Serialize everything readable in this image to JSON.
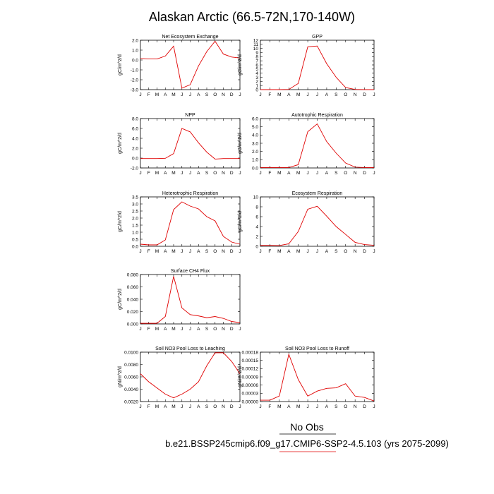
{
  "title": "Alaskan Arctic (66.5-72N,170-140W)",
  "legend": {
    "obs_label": "No Obs",
    "model_label": "b.e21.BSSP245cmip6.f09_g17.CMIP6-SSP2-4.5.103 (yrs 2075-2099)",
    "model_color": "#e00000",
    "obs_color": "#000000"
  },
  "chart_data": [
    {
      "type": "line",
      "title": "Net Ecosystem Exchange",
      "ylabel": "gC/m^2/d",
      "categories": [
        "J",
        "F",
        "M",
        "A",
        "M",
        "J",
        "J",
        "A",
        "S",
        "O",
        "N",
        "D",
        "J"
      ],
      "ylim": [
        -3.0,
        2.0
      ],
      "yticks": [
        -3.0,
        -2.0,
        -1.0,
        0.0,
        1.0,
        2.0
      ],
      "ytick_labels": [
        "-3.0",
        "-2.0",
        "-1.0",
        "0.0",
        "1.0",
        "2.0"
      ],
      "series": [
        {
          "color": "#e00000",
          "values": [
            0.15,
            0.1,
            0.1,
            0.4,
            1.4,
            -2.85,
            -2.5,
            -0.6,
            0.85,
            1.9,
            0.6,
            0.3,
            0.2
          ]
        }
      ]
    },
    {
      "type": "line",
      "title": "GPP",
      "ylabel": "gC/m^2/d",
      "categories": [
        "J",
        "F",
        "M",
        "A",
        "M",
        "J",
        "J",
        "A",
        "S",
        "O",
        "N",
        "D",
        "J"
      ],
      "ylim": [
        0,
        12
      ],
      "yticks": [
        0,
        1,
        2,
        3,
        4,
        5,
        6,
        7,
        8,
        9,
        10,
        11,
        12
      ],
      "ytick_labels": [
        "0",
        "1",
        "2",
        "3",
        "4",
        "5",
        "6",
        "7",
        "8",
        "9",
        "10",
        "11",
        "12"
      ],
      "series": [
        {
          "color": "#e00000",
          "values": [
            0,
            0,
            0,
            0.05,
            1.5,
            10.4,
            10.6,
            6.3,
            3.0,
            0.5,
            0.05,
            0,
            0
          ]
        }
      ]
    },
    {
      "type": "line",
      "title": "NPP",
      "ylabel": "gC/m^2/d",
      "categories": [
        "J",
        "F",
        "M",
        "A",
        "M",
        "J",
        "J",
        "A",
        "S",
        "O",
        "N",
        "D",
        "J"
      ],
      "ylim": [
        -2.0,
        8.0
      ],
      "yticks": [
        -2.0,
        0.0,
        2.0,
        4.0,
        6.0,
        8.0
      ],
      "ytick_labels": [
        "-2.0",
        "0.0",
        "2.0",
        "4.0",
        "6.0",
        "8.0"
      ],
      "series": [
        {
          "color": "#e00000",
          "values": [
            -0.1,
            -0.1,
            -0.1,
            -0.05,
            0.9,
            6.0,
            5.3,
            3.1,
            1.2,
            -0.2,
            -0.1,
            -0.1,
            -0.1
          ]
        }
      ]
    },
    {
      "type": "line",
      "title": "Autotrophic Respiration",
      "ylabel": "gC/m^2/d",
      "categories": [
        "J",
        "F",
        "M",
        "A",
        "M",
        "J",
        "J",
        "A",
        "S",
        "O",
        "N",
        "D",
        "J"
      ],
      "ylim": [
        0,
        6.0
      ],
      "yticks": [
        0,
        1.0,
        2.0,
        3.0,
        4.0,
        5.0,
        6.0
      ],
      "ytick_labels": [
        "0.0",
        "1.0",
        "2.0",
        "3.0",
        "4.0",
        "5.0",
        "6.0"
      ],
      "series": [
        {
          "color": "#e00000",
          "values": [
            0.05,
            0.05,
            0.05,
            0.05,
            0.4,
            4.4,
            5.35,
            3.2,
            1.8,
            0.6,
            0.1,
            0.05,
            0.05
          ]
        }
      ]
    },
    {
      "type": "line",
      "title": "Heterotrophic Respiration",
      "ylabel": "gC/m^2/d",
      "categories": [
        "J",
        "F",
        "M",
        "A",
        "M",
        "J",
        "J",
        "A",
        "S",
        "O",
        "N",
        "D",
        "J"
      ],
      "ylim": [
        0,
        3.5
      ],
      "yticks": [
        0,
        0.5,
        1.0,
        1.5,
        2.0,
        2.5,
        3.0,
        3.5
      ],
      "ytick_labels": [
        "0.0",
        "0.5",
        "1.0",
        "1.5",
        "2.0",
        "2.5",
        "3.0",
        "3.5"
      ],
      "series": [
        {
          "color": "#e00000",
          "values": [
            0.15,
            0.1,
            0.1,
            0.45,
            2.6,
            3.15,
            2.85,
            2.65,
            2.1,
            1.8,
            0.7,
            0.3,
            0.15
          ]
        }
      ]
    },
    {
      "type": "line",
      "title": "Ecosystem Respiration",
      "ylabel": "gC/m^2/d",
      "categories": [
        "J",
        "F",
        "M",
        "A",
        "M",
        "J",
        "J",
        "A",
        "S",
        "O",
        "N",
        "D",
        "J"
      ],
      "ylim": [
        0,
        10
      ],
      "yticks": [
        0,
        2,
        4,
        6,
        8,
        10
      ],
      "ytick_labels": [
        "0",
        "2",
        "4",
        "6",
        "8",
        "10"
      ],
      "series": [
        {
          "color": "#e00000",
          "values": [
            0.2,
            0.2,
            0.15,
            0.5,
            3.0,
            7.5,
            8.1,
            6.1,
            4.0,
            2.4,
            0.8,
            0.35,
            0.2
          ]
        }
      ]
    },
    {
      "type": "line",
      "title": "Surface CH4 Flux",
      "ylabel": "gC/m^2/d",
      "categories": [
        "J",
        "F",
        "M",
        "A",
        "M",
        "J",
        "J",
        "A",
        "S",
        "O",
        "N",
        "D",
        "J"
      ],
      "ylim": [
        0,
        0.08
      ],
      "yticks": [
        0,
        0.02,
        0.04,
        0.06,
        0.08
      ],
      "ytick_labels": [
        "0.000",
        "0.020",
        "0.040",
        "0.060",
        "0.080"
      ],
      "series": [
        {
          "color": "#e00000",
          "values": [
            0.001,
            0.001,
            0.001,
            0.012,
            0.077,
            0.026,
            0.015,
            0.013,
            0.01,
            0.012,
            0.009,
            0.004,
            0.002
          ]
        }
      ]
    },
    {
      "type": "line",
      "title": "Soil NO3 Pool Loss to Leaching",
      "ylabel": "gN/m^2/d",
      "categories": [
        "J",
        "F",
        "M",
        "A",
        "M",
        "J",
        "J",
        "A",
        "S",
        "O",
        "N",
        "D",
        "J"
      ],
      "ylim": [
        0.002,
        0.01
      ],
      "yticks": [
        0.002,
        0.004,
        0.006,
        0.008,
        0.01
      ],
      "ytick_labels": [
        "0.0020",
        "0.0040",
        "0.0060",
        "0.0080",
        "0.0100"
      ],
      "series": [
        {
          "color": "#e00000",
          "values": [
            0.0065,
            0.0052,
            0.0042,
            0.0032,
            0.0026,
            0.0032,
            0.004,
            0.0052,
            0.0078,
            0.0099,
            0.0099,
            0.0085,
            0.0065
          ]
        }
      ]
    },
    {
      "type": "line",
      "title": "Soil NO3 Pool Loss to Runoff",
      "ylabel": "gN/m^2/d",
      "categories": [
        "J",
        "F",
        "M",
        "A",
        "M",
        "J",
        "J",
        "A",
        "S",
        "O",
        "N",
        "D",
        "J"
      ],
      "ylim": [
        0,
        0.00018
      ],
      "yticks": [
        0,
        3e-05,
        6e-05,
        9e-05,
        0.00012,
        0.00015,
        0.00018
      ],
      "ytick_labels": [
        "0.00000",
        "0.00003",
        "0.00006",
        "0.00009",
        "0.00012",
        "0.00015",
        "0.00018"
      ],
      "series": [
        {
          "color": "#e00000",
          "values": [
            5e-06,
            5e-06,
            2e-05,
            0.000172,
            8e-05,
            2e-05,
            3.8e-05,
            4.8e-05,
            5e-05,
            6.5e-05,
            2e-05,
            1.5e-05,
            2e-06
          ]
        }
      ]
    }
  ]
}
